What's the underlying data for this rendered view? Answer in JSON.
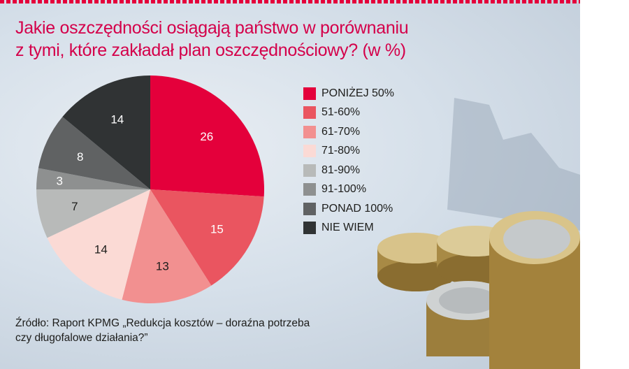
{
  "chart_data": {
    "type": "pie",
    "title": [
      "Jakie oszczędności osiągają państwo w porównaniu",
      "z tymi, które zakładał plan oszczędnościowy? (w %)"
    ],
    "categories": [
      "PONIŻEJ 50%",
      "51-60%",
      "61-70%",
      "71-80%",
      "81-90%",
      "91-100%",
      "PONAD 100%",
      "NIE WIEM"
    ],
    "values": [
      26,
      15,
      13,
      14,
      7,
      3,
      8,
      14
    ],
    "colors": [
      "#e4003b",
      "#ea5560",
      "#f29090",
      "#fbdad5",
      "#b8bab9",
      "#8e9090",
      "#606263",
      "#303334"
    ],
    "label_colors": [
      "#ffffff",
      "#ffffff",
      "#1d1d1b",
      "#1d1d1b",
      "#1d1d1b",
      "#ffffff",
      "#ffffff",
      "#ffffff"
    ],
    "start": "12 o'clock, clockwise",
    "legend_position": "right",
    "source": [
      "Źródło: Raport KPMG „Redukcja kosztów – doraźna potrzeba",
      "czy długofalowe działania?”"
    ]
  },
  "accent_color": "#d4004a",
  "background_image": "euro-coins-stack"
}
